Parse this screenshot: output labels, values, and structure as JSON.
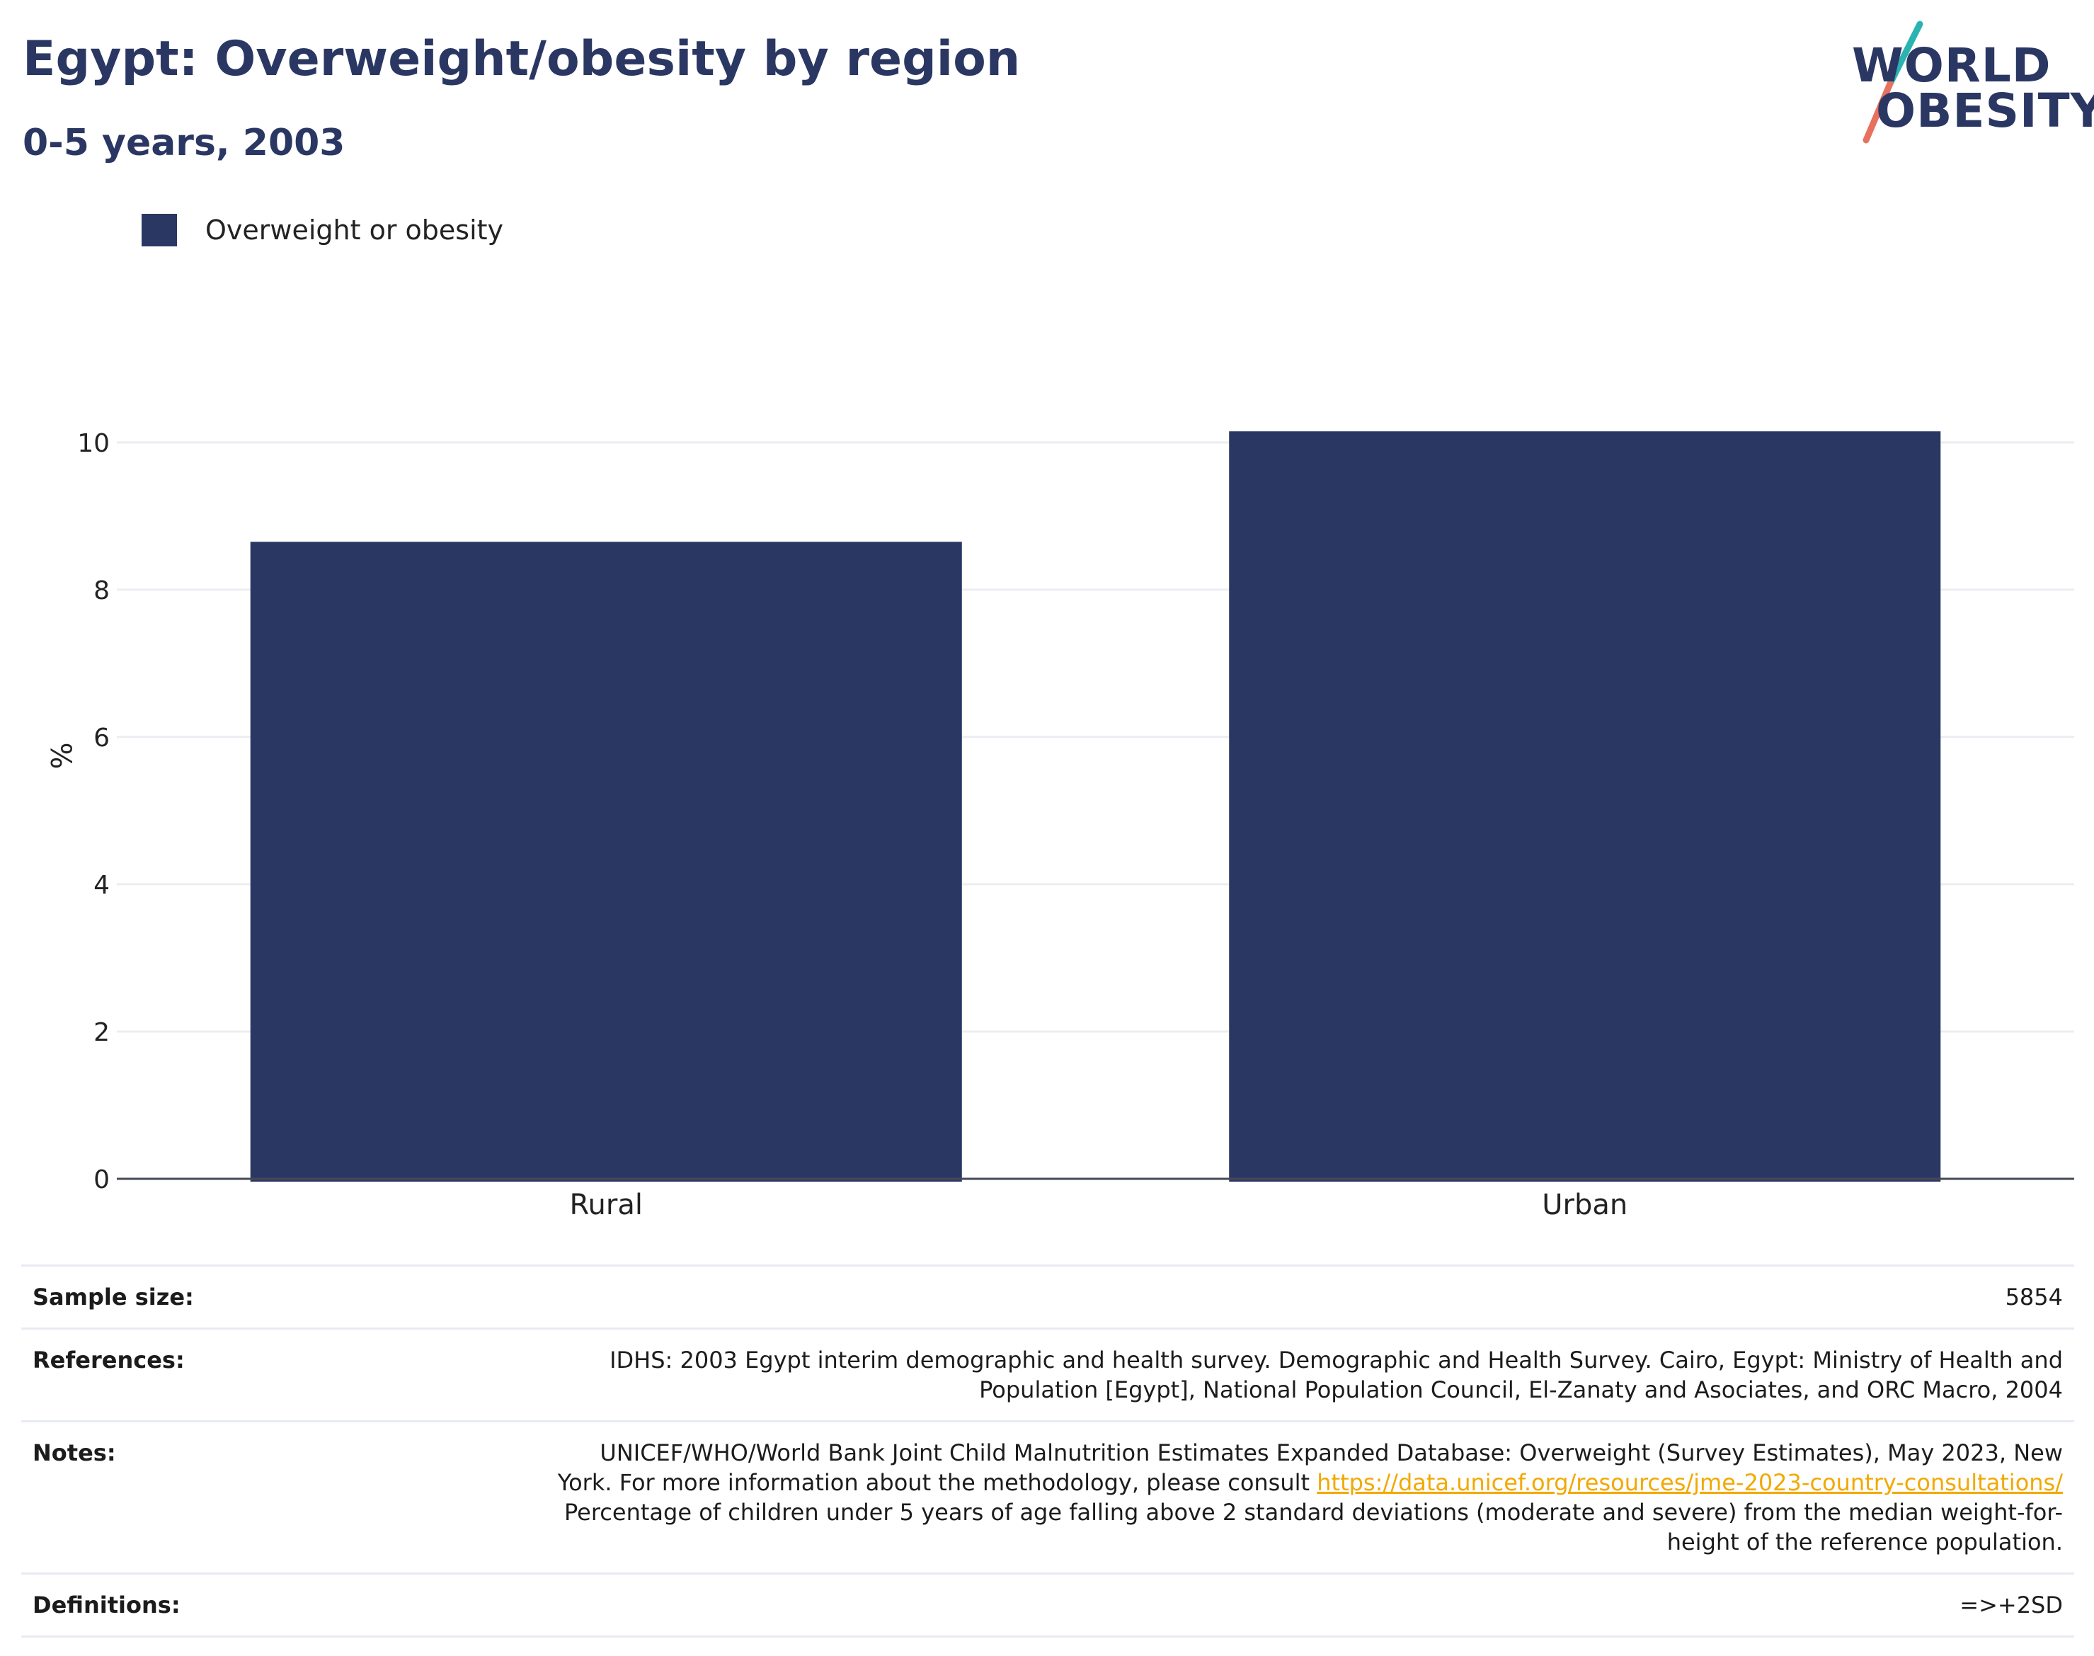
{
  "header": {
    "title": "Egypt: Overweight/obesity by region",
    "subtitle": "0-5 years, 2003"
  },
  "logo": {
    "line1": "WORLD",
    "line2": "OBESITY",
    "colors": {
      "text": "#2b3763",
      "teal_slash": "#2ab3b0",
      "coral_slash": "#e8705f"
    }
  },
  "legend": {
    "label": "Overweight or obesity",
    "color": "#2b3763"
  },
  "chart_data": {
    "type": "bar",
    "categories": [
      "Rural",
      "Urban"
    ],
    "series": [
      {
        "name": "Overweight or obesity",
        "values": [
          8.65,
          10.15
        ],
        "color": "#2b3763"
      }
    ],
    "ylabel": "%",
    "ylim": [
      0,
      11.2
    ],
    "yticks": [
      0,
      2,
      4,
      6,
      8,
      10
    ],
    "grid": true,
    "legend_position": "top-left"
  },
  "info": {
    "sample_size_label": "Sample size:",
    "sample_size_value": "5854",
    "references_label": "References:",
    "references_line1": "IDHS: 2003 Egypt interim demographic and health survey. Demographic and Health Survey. Cairo, Egypt: Ministry of Health and",
    "references_line2": "Population [Egypt], National Population Council, El-Zanaty and Asociates, and ORC Macro, 2004",
    "notes_label": "Notes:",
    "notes_line1": "UNICEF/WHO/World Bank Joint Child Malnutrition Estimates Expanded Database: Overweight (Survey Estimates), May 2023, New",
    "notes_line2_prefix": "York. For more information about the methodology, please consult ",
    "notes_link": "https://data.unicef.org/resources/jme-2023-country-consultations/",
    "notes_line3": "Percentage of children under 5 years of age falling above 2 standard deviations (moderate and severe) from the median weight-for-",
    "notes_line4": "height of the reference population.",
    "definitions_label": "Definitions:",
    "definitions_value": "=>+2SD"
  }
}
